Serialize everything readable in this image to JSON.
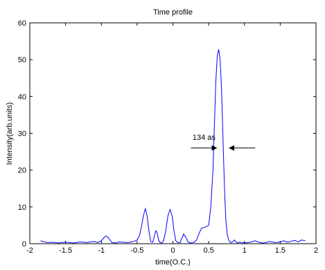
{
  "chart_data": {
    "type": "line",
    "title": "Time profile",
    "xlabel": "time(O.C.)",
    "ylabel": "Intensity(arb.units)",
    "xlim": [
      -2,
      2
    ],
    "ylim": [
      0,
      60
    ],
    "xticks": [
      -2,
      -1.5,
      -1,
      -0.5,
      0,
      0.5,
      1,
      1.5,
      2
    ],
    "xtick_labels": [
      "-2",
      "-1.5",
      "-1",
      "-0.5",
      "0",
      "0.5",
      "1",
      "1.5",
      "2"
    ],
    "yticks": [
      0,
      10,
      20,
      30,
      40,
      50,
      60
    ],
    "ytick_labels": [
      "0",
      "10",
      "20",
      "30",
      "40",
      "50",
      "60"
    ],
    "grid": false,
    "line_color": "#0000ff",
    "series": [
      {
        "x": [
          -1.85,
          -1.8,
          -1.75,
          -1.7,
          -1.65,
          -1.6,
          -1.55,
          -1.5,
          -1.45,
          -1.4,
          -1.35,
          -1.3,
          -1.25,
          -1.2,
          -1.15,
          -1.1,
          -1.05,
          -1.0,
          -0.97,
          -0.94,
          -0.91,
          -0.88,
          -0.85,
          -0.8,
          -0.75,
          -0.7,
          -0.65,
          -0.6,
          -0.55,
          -0.5,
          -0.47,
          -0.44,
          -0.41,
          -0.385,
          -0.36,
          -0.335,
          -0.31,
          -0.28,
          -0.26,
          -0.24,
          -0.22,
          -0.2,
          -0.18,
          -0.155,
          -0.13,
          -0.1,
          -0.07,
          -0.04,
          -0.01,
          0.015,
          0.04,
          0.07,
          0.1,
          0.125,
          0.15,
          0.18,
          0.21,
          0.24,
          0.27,
          0.3,
          0.33,
          0.36,
          0.4,
          0.45,
          0.5,
          0.53,
          0.56,
          0.58,
          0.6,
          0.62,
          0.64,
          0.66,
          0.68,
          0.695,
          0.71,
          0.725,
          0.74,
          0.76,
          0.78,
          0.8,
          0.82,
          0.84,
          0.86,
          0.88,
          0.9,
          0.93,
          0.96,
          1.0,
          1.05,
          1.1,
          1.15,
          1.2,
          1.25,
          1.3,
          1.35,
          1.4,
          1.45,
          1.5,
          1.55,
          1.6,
          1.65,
          1.7,
          1.75,
          1.8,
          1.85
        ],
        "y": [
          0.8,
          0.5,
          0.3,
          0.4,
          0.3,
          0.2,
          0.3,
          0.4,
          0.3,
          0.2,
          0.3,
          0.5,
          0.4,
          0.3,
          0.5,
          0.6,
          0.3,
          0.8,
          1.5,
          2.1,
          1.8,
          1.0,
          0.3,
          0.2,
          0.5,
          0.4,
          0.3,
          0.4,
          0.6,
          1.0,
          2.0,
          4.5,
          7.8,
          9.5,
          7.5,
          3.5,
          0.6,
          0.4,
          2.0,
          3.5,
          3.0,
          1.0,
          0.3,
          0.2,
          0.8,
          3.5,
          7.5,
          9.3,
          7.5,
          3.5,
          0.8,
          0.3,
          0.3,
          1.5,
          2.6,
          1.8,
          0.5,
          0.2,
          0.3,
          0.4,
          1.0,
          2.5,
          4.2,
          4.5,
          5.0,
          10.0,
          20.0,
          32.0,
          44.0,
          51.0,
          52.8,
          50.0,
          42.0,
          32.0,
          22.0,
          13.0,
          6.5,
          2.5,
          1.0,
          0.4,
          0.3,
          0.6,
          1.0,
          0.5,
          0.2,
          0.4,
          0.3,
          0.2,
          0.3,
          0.5,
          0.8,
          0.4,
          0.2,
          0.3,
          0.6,
          0.4,
          0.3,
          0.5,
          0.8,
          0.4,
          0.6,
          0.9,
          0.5,
          1.0,
          0.8
        ]
      }
    ],
    "annotation": {
      "text": "134 as",
      "y": 26,
      "left_arrow_x": [
        0.25,
        0.62
      ],
      "right_arrow_x": [
        1.15,
        0.78
      ]
    }
  }
}
